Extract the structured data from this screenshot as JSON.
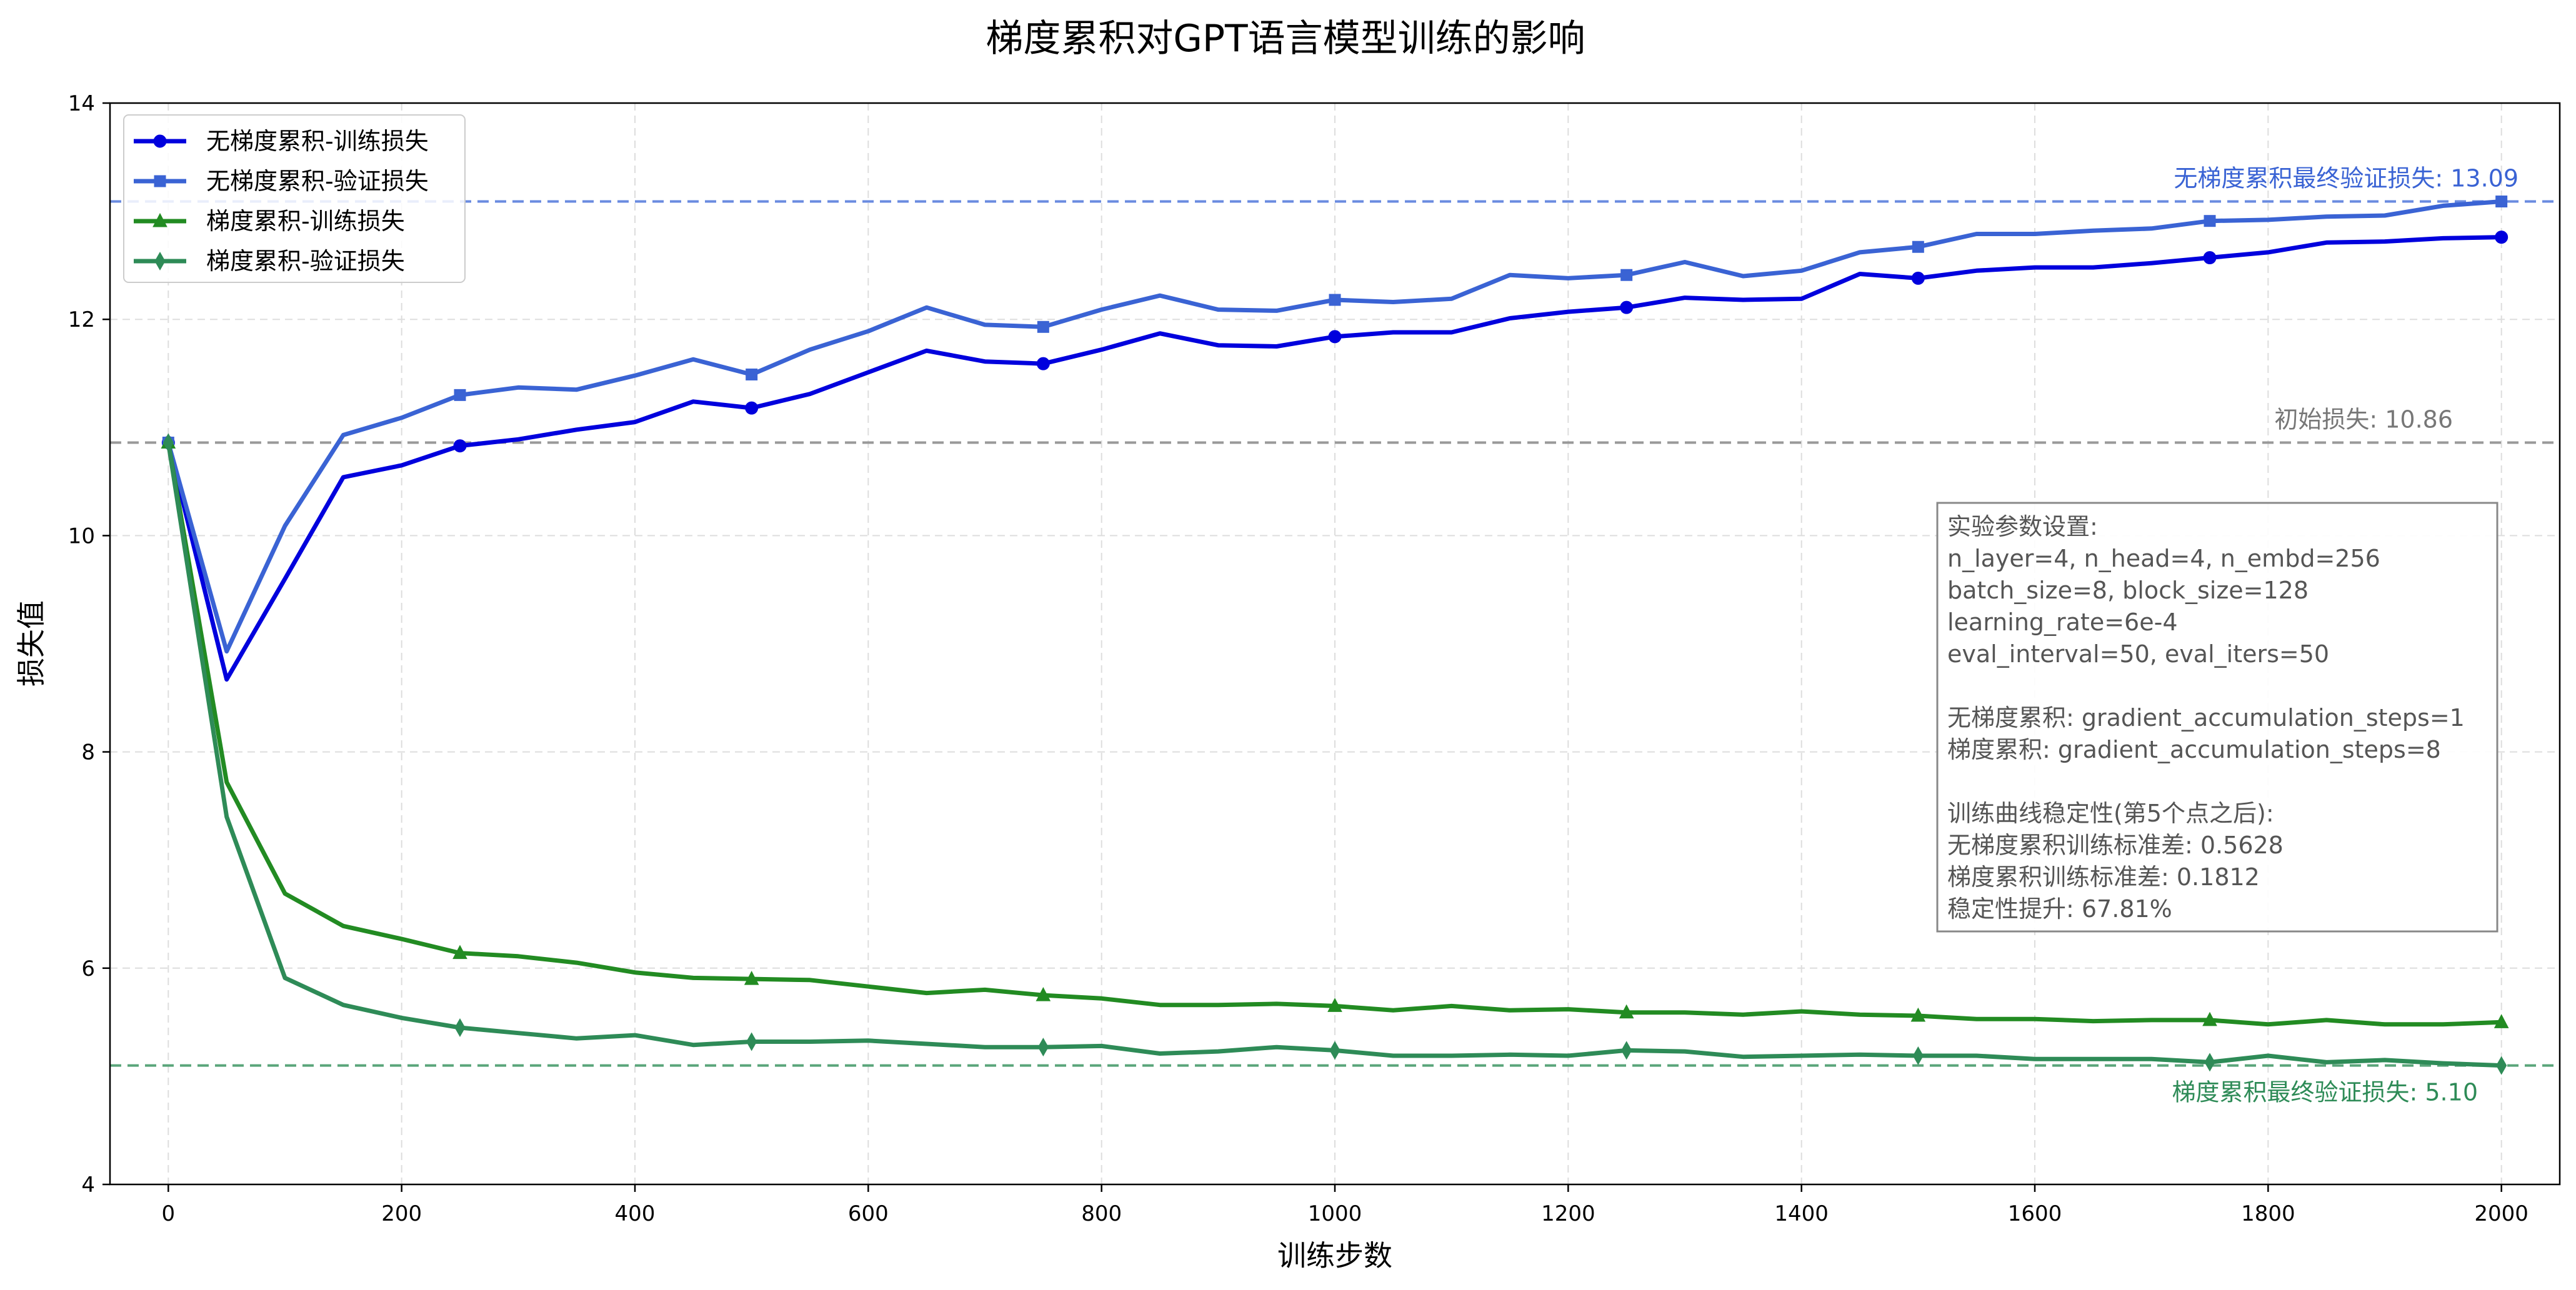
{
  "chart_data": {
    "type": "line",
    "title": "梯度累积对GPT语言模型训练的影响",
    "xlabel": "训练步数",
    "ylabel": "损失值",
    "xlim": [
      -50,
      2050
    ],
    "ylim": [
      4,
      14
    ],
    "xticks": [
      0,
      200,
      400,
      600,
      800,
      1000,
      1200,
      1400,
      1600,
      1800,
      2000
    ],
    "yticks": [
      4,
      6,
      8,
      10,
      12,
      14
    ],
    "grid": true,
    "legend_position": "top-left",
    "x": [
      0,
      50,
      100,
      150,
      200,
      250,
      300,
      350,
      400,
      450,
      500,
      550,
      600,
      650,
      700,
      750,
      800,
      850,
      900,
      950,
      1000,
      1050,
      1100,
      1150,
      1200,
      1250,
      1300,
      1350,
      1400,
      1450,
      1500,
      1550,
      1600,
      1650,
      1700,
      1750,
      1800,
      1850,
      1900,
      1950,
      2000
    ],
    "series": [
      {
        "name": "无梯度累积-训练损失",
        "color": "#0000dd",
        "marker": "circle",
        "values": [
          10.86,
          8.67,
          9.6,
          10.54,
          10.65,
          10.83,
          10.89,
          10.98,
          11.05,
          11.24,
          11.18,
          11.31,
          11.51,
          11.71,
          11.61,
          11.59,
          11.72,
          11.87,
          11.76,
          11.75,
          11.84,
          11.88,
          11.88,
          12.01,
          12.07,
          12.11,
          12.2,
          12.18,
          12.19,
          12.42,
          12.38,
          12.45,
          12.48,
          12.48,
          12.52,
          12.57,
          12.62,
          12.71,
          12.72,
          12.75,
          12.76
        ]
      },
      {
        "name": "无梯度累积-验证损失",
        "color": "#3a63d4",
        "marker": "square",
        "values": [
          10.86,
          8.93,
          10.09,
          10.93,
          11.09,
          11.3,
          11.37,
          11.35,
          11.48,
          11.63,
          11.49,
          11.72,
          11.89,
          12.11,
          11.95,
          11.93,
          12.09,
          12.22,
          12.09,
          12.08,
          12.18,
          12.16,
          12.19,
          12.41,
          12.38,
          12.41,
          12.53,
          12.4,
          12.45,
          12.62,
          12.67,
          12.79,
          12.79,
          12.82,
          12.84,
          12.91,
          12.92,
          12.95,
          12.96,
          13.05,
          13.09
        ]
      },
      {
        "name": "梯度累积-训练损失",
        "color": "#228b22",
        "marker": "triangle",
        "values": [
          10.86,
          7.72,
          6.69,
          6.39,
          6.27,
          6.14,
          6.11,
          6.05,
          5.96,
          5.91,
          5.9,
          5.89,
          5.83,
          5.77,
          5.8,
          5.75,
          5.72,
          5.66,
          5.66,
          5.67,
          5.65,
          5.61,
          5.65,
          5.61,
          5.62,
          5.59,
          5.59,
          5.57,
          5.6,
          5.57,
          5.56,
          5.53,
          5.53,
          5.51,
          5.52,
          5.52,
          5.48,
          5.52,
          5.48,
          5.48,
          5.5
        ]
      },
      {
        "name": "梯度累积-验证损失",
        "color": "#2e8b57",
        "marker": "diamond",
        "values": [
          10.86,
          7.4,
          5.91,
          5.66,
          5.54,
          5.45,
          5.4,
          5.35,
          5.38,
          5.29,
          5.32,
          5.32,
          5.33,
          5.3,
          5.27,
          5.27,
          5.28,
          5.21,
          5.23,
          5.27,
          5.24,
          5.19,
          5.19,
          5.2,
          5.19,
          5.24,
          5.23,
          5.18,
          5.19,
          5.2,
          5.19,
          5.19,
          5.16,
          5.16,
          5.16,
          5.13,
          5.19,
          5.13,
          5.15,
          5.12,
          5.1
        ]
      }
    ],
    "reference_lines": [
      {
        "y": 13.09,
        "color": "#6a8be0",
        "label": "无梯度累积最终验证损失: 13.09",
        "label_color": "#3a63d4"
      },
      {
        "y": 10.86,
        "color": "#999999",
        "label": "初始损失: 10.86",
        "label_color": "#777777"
      },
      {
        "y": 5.1,
        "color": "#5aa57a",
        "label": "梯度累积最终验证损失: 5.10",
        "label_color": "#2e8b57"
      }
    ],
    "info_box": [
      "实验参数设置:",
      "n_layer=4, n_head=4, n_embd=256",
      "batch_size=8, block_size=128",
      "learning_rate=6e-4",
      "eval_interval=50, eval_iters=50",
      "",
      "无梯度累积: gradient_accumulation_steps=1",
      "梯度累积: gradient_accumulation_steps=8",
      "",
      "训练曲线稳定性(第5个点之后):",
      "无梯度累积训练标准差: 0.5628",
      "梯度累积训练标准差: 0.1812",
      "稳定性提升: 67.81%"
    ]
  }
}
